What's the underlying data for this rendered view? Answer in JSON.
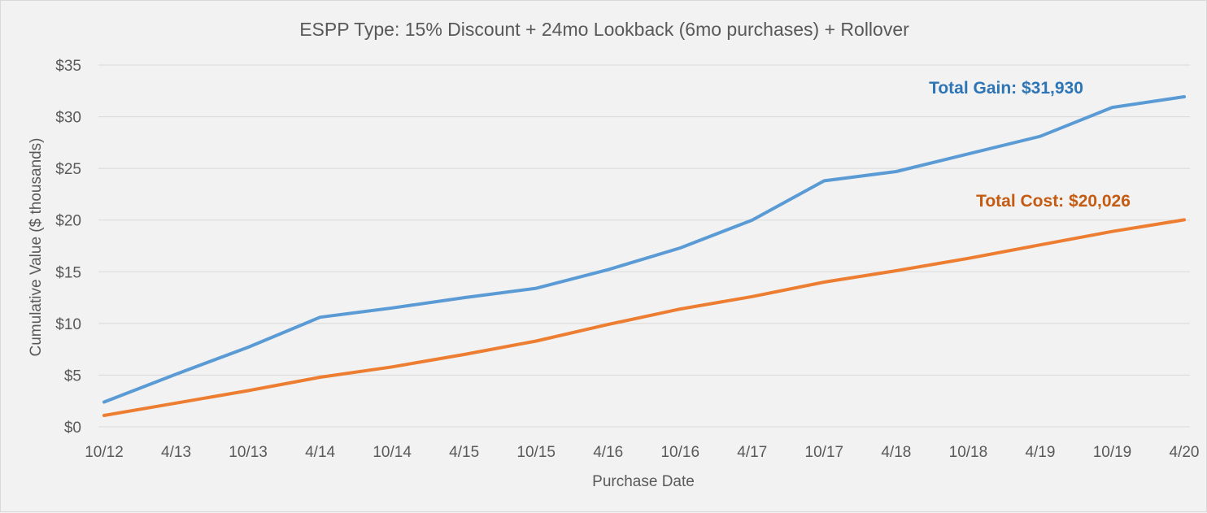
{
  "chart_data": {
    "type": "line",
    "title": "ESPP Type: 15% Discount + 24mo Lookback (6mo purchases) + Rollover",
    "xlabel": "Purchase Date",
    "ylabel": "Cumulative Value ($ thousands)",
    "categories": [
      "10/12",
      "4/13",
      "10/13",
      "4/14",
      "10/14",
      "4/15",
      "10/15",
      "4/16",
      "10/16",
      "4/17",
      "10/17",
      "4/18",
      "10/18",
      "4/19",
      "10/19",
      "4/20"
    ],
    "ylim": [
      0,
      35
    ],
    "yticks": [
      0,
      5,
      10,
      15,
      20,
      25,
      30,
      35
    ],
    "ytick_labels": [
      "$0",
      "$5",
      "$10",
      "$15",
      "$20",
      "$25",
      "$30",
      "$35"
    ],
    "grid": true,
    "series": [
      {
        "color": "#5b9bd5",
        "values": [
          2.4,
          5.1,
          7.7,
          10.6,
          11.5,
          12.5,
          13.4,
          15.2,
          17.3,
          20.0,
          23.8,
          24.7,
          26.4,
          28.1,
          30.9,
          31.93
        ]
      },
      {
        "color": "#ed7d31",
        "values": [
          1.1,
          2.3,
          3.5,
          4.8,
          5.8,
          7.0,
          8.3,
          9.9,
          11.4,
          12.6,
          14.0,
          15.1,
          16.3,
          17.6,
          18.9,
          20.026
        ]
      }
    ],
    "annotations": [
      {
        "text": "Total Gain: $31,930",
        "color": "#2e75b6"
      },
      {
        "text": "Total Cost: $20,026",
        "color": "#c55a11"
      }
    ]
  }
}
